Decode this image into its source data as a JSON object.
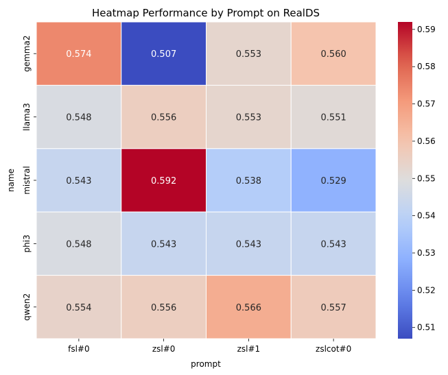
{
  "chart_data": {
    "type": "heatmap",
    "title": "Heatmap Performance by Prompt on RealDS",
    "xlabel": "prompt",
    "ylabel": "name",
    "x_categories": [
      "fsl#0",
      "zsl#0",
      "zsl#1",
      "zslcot#0"
    ],
    "y_categories": [
      "gemma2",
      "llama3",
      "mistral",
      "phi3",
      "qwen2"
    ],
    "values": [
      [
        0.574,
        0.507,
        0.553,
        0.56
      ],
      [
        0.548,
        0.556,
        0.553,
        0.551
      ],
      [
        0.543,
        0.592,
        0.538,
        0.529
      ],
      [
        0.548,
        0.543,
        0.543,
        0.543
      ],
      [
        0.554,
        0.556,
        0.566,
        0.557
      ]
    ],
    "value_labels": [
      [
        "0.574",
        "0.507",
        "0.553",
        "0.560"
      ],
      [
        "0.548",
        "0.556",
        "0.553",
        "0.551"
      ],
      [
        "0.543",
        "0.592",
        "0.538",
        "0.529"
      ],
      [
        "0.548",
        "0.543",
        "0.543",
        "0.543"
      ],
      [
        "0.554",
        "0.556",
        "0.566",
        "0.557"
      ]
    ],
    "colormap": "coolwarm",
    "vmin": 0.507,
    "vmax": 0.592,
    "colorbar_ticks": [
      0.51,
      0.52,
      0.53,
      0.54,
      0.55,
      0.56,
      0.57,
      0.58,
      0.59
    ],
    "colorbar_tick_labels": [
      "0.51",
      "0.52",
      "0.53",
      "0.54",
      "0.55",
      "0.56",
      "0.57",
      "0.58",
      "0.59"
    ],
    "colorbar_position": "right",
    "grid": false
  }
}
